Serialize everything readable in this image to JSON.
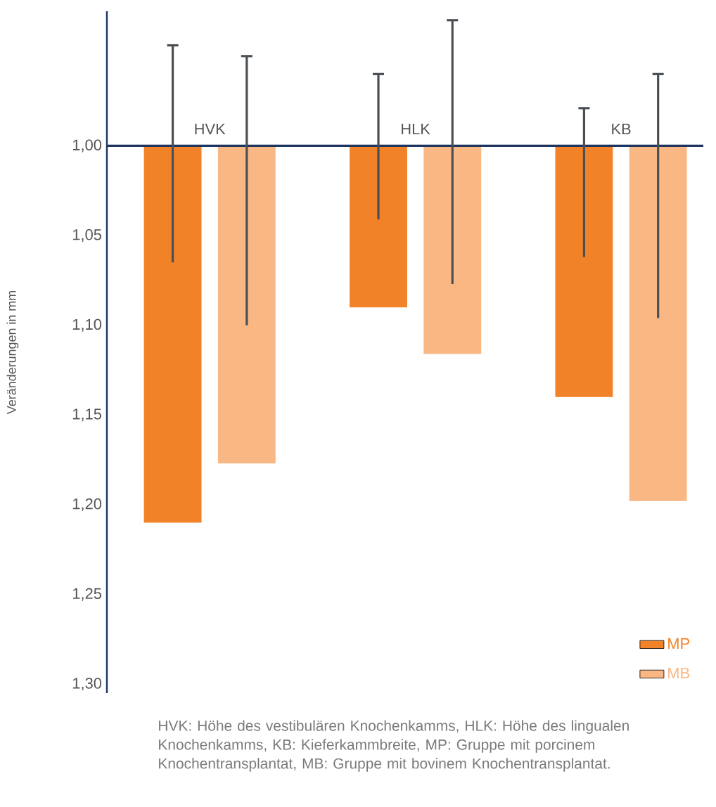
{
  "chart_data": {
    "type": "bar",
    "ylabel": "Veränderungen in mm",
    "categories": [
      "HVK",
      "HLK",
      "KB"
    ],
    "series": [
      {
        "name": "MP",
        "color": "#f28227",
        "base": [
          1.0,
          1.0,
          1.0
        ],
        "values": [
          0.21,
          0.09,
          0.14
        ],
        "errors": [
          [
            0.944,
            1.065
          ],
          [
            0.96,
            1.041
          ],
          [
            0.979,
            1.062
          ]
        ]
      },
      {
        "name": "MB",
        "color": "#f9b784",
        "base": [
          1.0,
          1.0,
          1.0
        ],
        "values": [
          0.177,
          0.116,
          0.198
        ],
        "errors": [
          [
            0.95,
            1.1
          ],
          [
            0.93,
            1.077
          ],
          [
            0.96,
            1.096
          ]
        ]
      }
    ],
    "ylim": [
      1.305,
      0.925
    ],
    "yticks": [
      {
        "value": 1.0,
        "label": "1,00"
      },
      {
        "value": 1.05,
        "label": "1,05"
      },
      {
        "value": 1.1,
        "label": "1,10"
      },
      {
        "value": 1.15,
        "label": "1,15"
      },
      {
        "value": 1.2,
        "label": "1,20"
      },
      {
        "value": 1.25,
        "label": "1,25"
      },
      {
        "value": 1.3,
        "label": "1,30"
      }
    ],
    "legend": "bottom right",
    "grid": false,
    "annotations": [
      "HVK: Höhe des vestibulären Knochenkamms, HLK: Höhe des lingualen Knochenkamms, KB: Kieferkammbreite, MP: Gruppe mit porcinem Knochentransplantat, MB: Gruppe mit bovinem Knochentransplantat."
    ]
  }
}
